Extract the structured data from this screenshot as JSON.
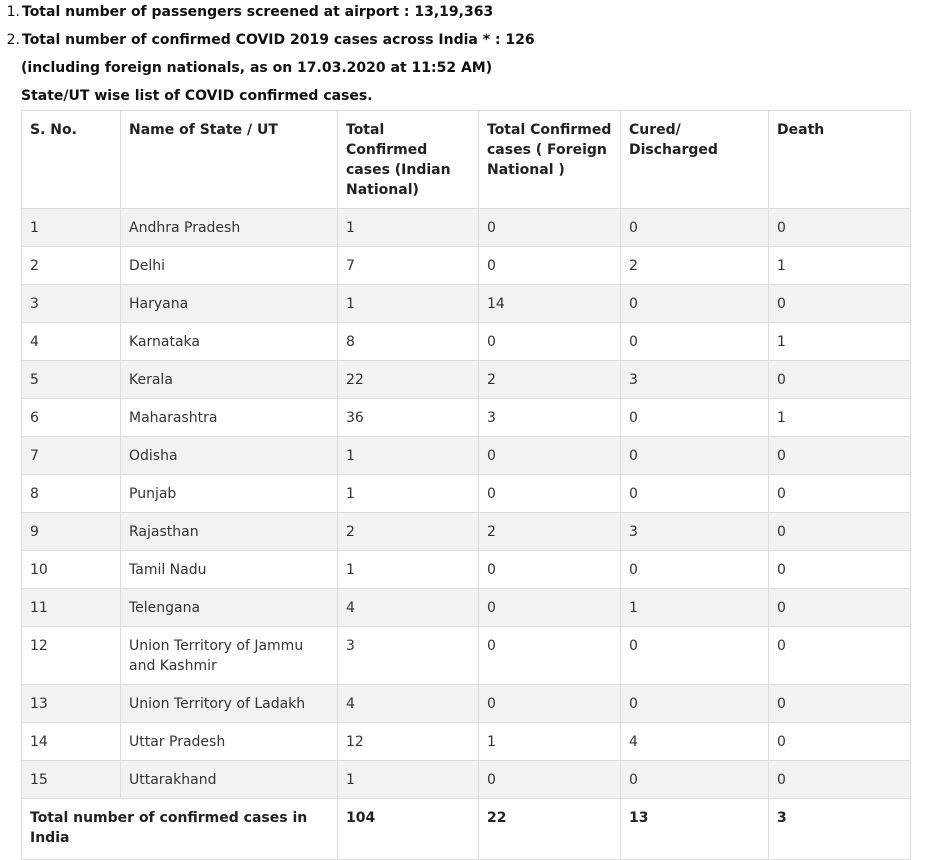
{
  "intro": {
    "item1_number": "1.",
    "item1_text": "Total number of passengers screened at airport : 13,19,363",
    "item2_number": "2.",
    "item2_text": "Total number of confirmed COVID 2019 cases across India * : 126",
    "item2_note": "(including foreign nationals, as on 17.03.2020 at 11:52 AM)",
    "table_caption": "State/UT wise list of COVID confirmed cases."
  },
  "table": {
    "headers": [
      "S. No.",
      "Name of State / UT",
      "Total Confirmed cases (Indian National)",
      "Total Confirmed cases ( Foreign National )",
      "Cured/ Discharged",
      "Death"
    ],
    "rows": [
      [
        "1",
        "Andhra Pradesh",
        "1",
        "0",
        "0",
        "0"
      ],
      [
        "2",
        "Delhi",
        "7",
        "0",
        "2",
        "1"
      ],
      [
        "3",
        "Haryana",
        "1",
        "14",
        "0",
        "0"
      ],
      [
        "4",
        "Karnataka",
        "8",
        "0",
        "0",
        "1"
      ],
      [
        "5",
        "Kerala",
        "22",
        "2",
        "3",
        "0"
      ],
      [
        "6",
        "Maharashtra",
        "36",
        "3",
        "0",
        "1"
      ],
      [
        "7",
        "Odisha",
        "1",
        "0",
        "0",
        "0"
      ],
      [
        "8",
        "Punjab",
        "1",
        "0",
        "0",
        "0"
      ],
      [
        "9",
        "Rajasthan",
        "2",
        "2",
        "3",
        "0"
      ],
      [
        "10",
        "Tamil Nadu",
        "1",
        "0",
        "0",
        "0"
      ],
      [
        "11",
        "Telengana",
        "4",
        "0",
        "1",
        "0"
      ],
      [
        "12",
        "Union Territory of Jammu and Kashmir",
        "3",
        "0",
        "0",
        "0"
      ],
      [
        "13",
        "Union Territory of Ladakh",
        "4",
        "0",
        "0",
        "0"
      ],
      [
        "14",
        "Uttar Pradesh",
        "12",
        "1",
        "4",
        "0"
      ],
      [
        "15",
        "Uttarakhand",
        "1",
        "0",
        "0",
        "0"
      ]
    ],
    "total": {
      "label": "Total number of confirmed cases in India",
      "indian": "104",
      "foreign": "22",
      "cured": "13",
      "death": "3"
    }
  }
}
